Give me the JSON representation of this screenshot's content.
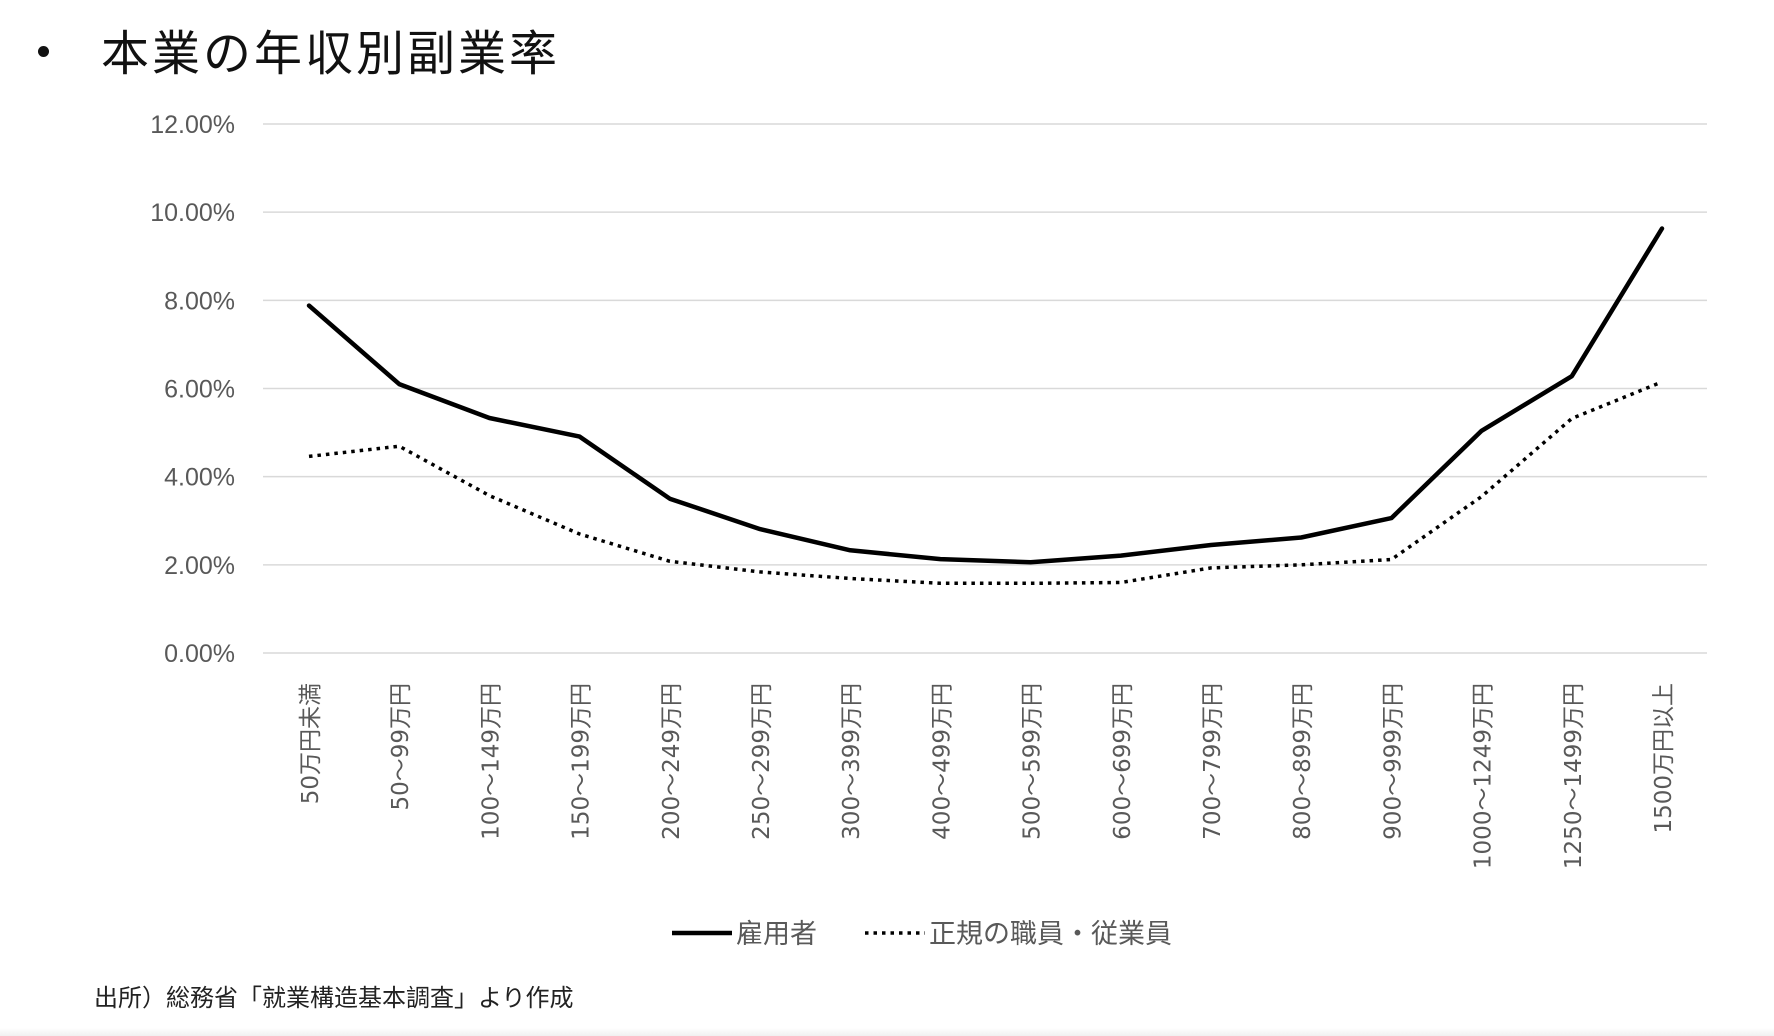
{
  "slide": {
    "title": "本業の年収別副業率",
    "source_note": "出所）総務省「就業構造基本調査」より作成"
  },
  "chart_data": {
    "type": "line",
    "title": "",
    "xlabel": "",
    "ylabel": "",
    "ylim": [
      0,
      0.12
    ],
    "y_ticks": [
      0,
      0.02,
      0.04,
      0.06,
      0.08,
      0.1,
      0.12
    ],
    "y_tick_labels": [
      "0.00%",
      "2.00%",
      "4.00%",
      "6.00%",
      "8.00%",
      "10.00%",
      "12.00%"
    ],
    "grid": true,
    "legend_position": "bottom",
    "categories": [
      "50万円未満",
      "50～99万円",
      "100～149万円",
      "150～199万円",
      "200～249万円",
      "250～299万円",
      "300～399万円",
      "400～499万円",
      "500～599万円",
      "600～699万円",
      "700～799万円",
      "800～899万円",
      "900～999万円",
      "1000～1249万円",
      "1250～1499万円",
      "1500万円以上"
    ],
    "series": [
      {
        "name": "雇用者",
        "style": "solid",
        "color": "#000000",
        "values": [
          0.0788,
          0.061,
          0.0533,
          0.0491,
          0.035,
          0.0281,
          0.0233,
          0.0213,
          0.0206,
          0.0221,
          0.0245,
          0.0262,
          0.0306,
          0.0504,
          0.0628,
          0.0963
        ]
      },
      {
        "name": "正規の職員・従業員",
        "style": "dotted",
        "color": "#000000",
        "values": [
          0.0446,
          0.0469,
          0.0357,
          0.027,
          0.0208,
          0.0184,
          0.0169,
          0.0158,
          0.0158,
          0.016,
          0.0193,
          0.02,
          0.0212,
          0.0355,
          0.0532,
          0.0615
        ]
      }
    ]
  },
  "colors": {
    "gridline": "#d9d9d9",
    "axis_text": "#595959",
    "line": "#000000"
  }
}
